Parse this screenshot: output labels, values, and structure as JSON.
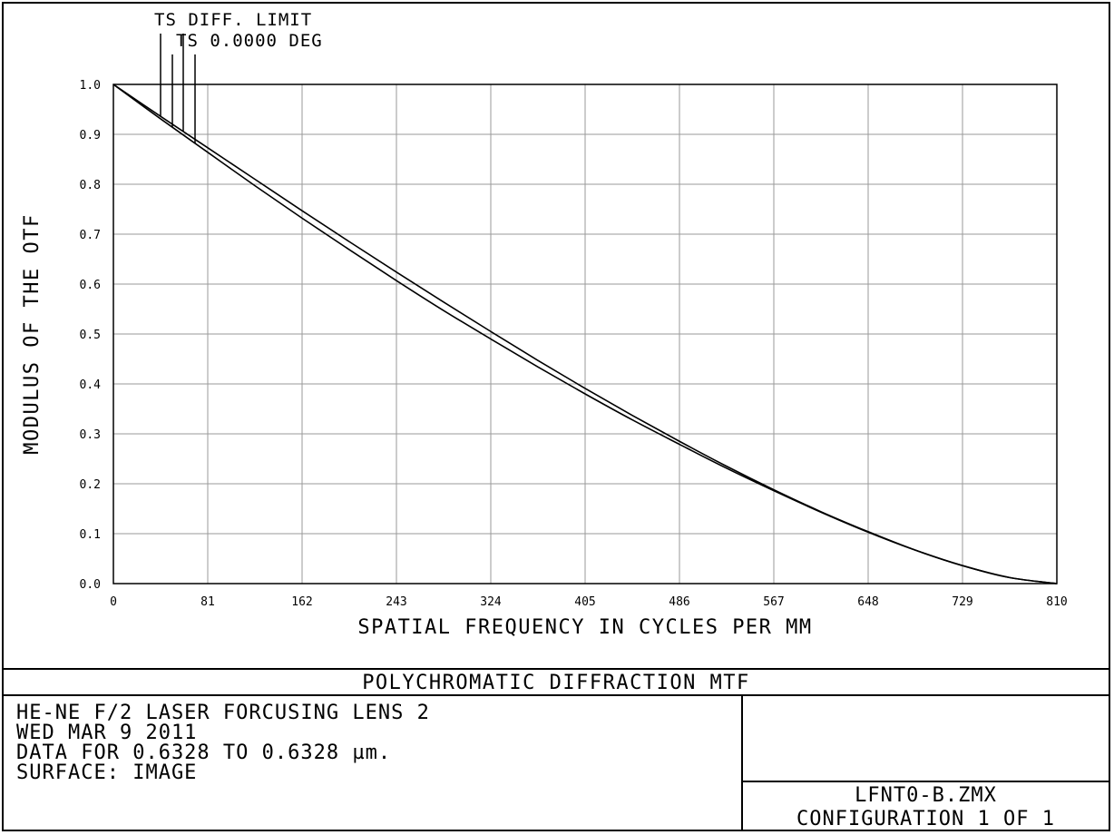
{
  "chart_data": {
    "type": "line",
    "xlabel": "SPATIAL FREQUENCY IN CYCLES PER MM",
    "ylabel": "MODULUS OF THE OTF",
    "xlim": [
      0,
      810
    ],
    "ylim": [
      0,
      1.0
    ],
    "x_ticks": [
      "0",
      "81",
      "162",
      "243",
      "324",
      "405",
      "486",
      "567",
      "648",
      "729",
      "810"
    ],
    "x_tick_values": [
      0,
      81,
      162,
      243,
      324,
      405,
      486,
      567,
      648,
      729,
      810
    ],
    "y_ticks": [
      "0.0",
      "0.1",
      "0.2",
      "0.3",
      "0.4",
      "0.5",
      "0.6",
      "0.7",
      "0.8",
      "0.9",
      "1.0"
    ],
    "y_tick_values": [
      0,
      0.1,
      0.2,
      0.3,
      0.4,
      0.5,
      0.6,
      0.7,
      0.8,
      0.9,
      1.0
    ],
    "grid": true,
    "legend_labels": [
      "TS DIFF. LIMIT",
      "TS 0.0000 DEG"
    ],
    "x": [
      0,
      40.5,
      81,
      121.5,
      162,
      202.5,
      243,
      283.5,
      324,
      364.5,
      405,
      445.5,
      486,
      526.5,
      567,
      607.5,
      648,
      688.5,
      729,
      769.5,
      810
    ],
    "series": [
      {
        "name": "TS DIFF. LIMIT",
        "values": [
          1.0,
          0.936,
          0.873,
          0.81,
          0.747,
          0.685,
          0.624,
          0.564,
          0.505,
          0.447,
          0.391,
          0.337,
          0.285,
          0.235,
          0.188,
          0.144,
          0.104,
          0.067,
          0.036,
          0.012,
          0.0
        ]
      },
      {
        "name": "TS 0.0000 DEG",
        "values": [
          1.0,
          0.931,
          0.864,
          0.797,
          0.732,
          0.669,
          0.607,
          0.547,
          0.49,
          0.434,
          0.38,
          0.328,
          0.279,
          0.231,
          0.186,
          0.143,
          0.103,
          0.067,
          0.036,
          0.012,
          0.0
        ]
      }
    ]
  },
  "footer": {
    "title": "POLYCHROMATIC DIFFRACTION MTF",
    "info_lines": [
      "HE-NE F/2 LASER FORCUSING LENS 2",
      "WED MAR 9 2011",
      "DATA FOR 0.6328 TO 0.6328 µm.",
      "SURFACE: IMAGE"
    ],
    "file_name": "LFNT0-B.ZMX",
    "configuration": "CONFIGURATION 1 OF 1"
  },
  "colors": {
    "line": "#000000",
    "grid": "#9a9a9a",
    "background": "#ffffff"
  }
}
